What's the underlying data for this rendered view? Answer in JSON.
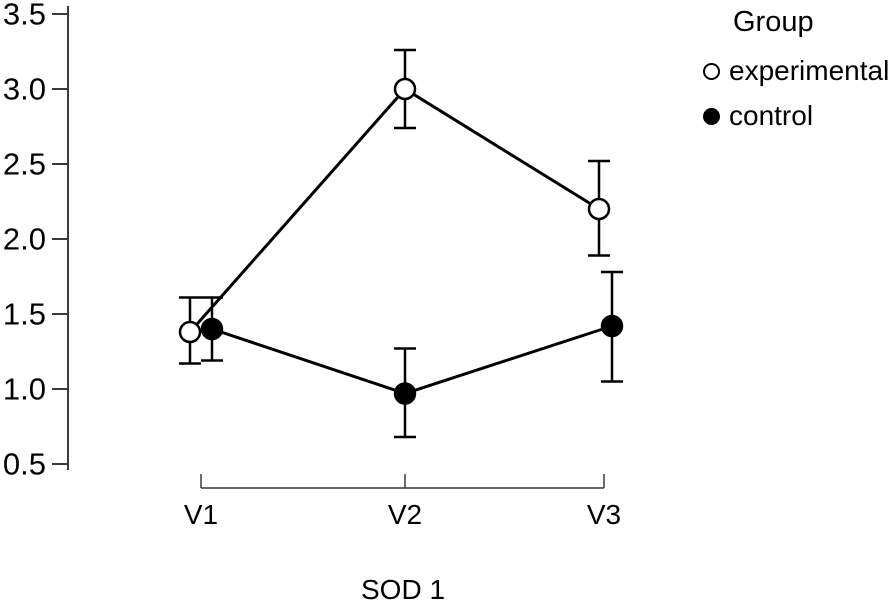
{
  "chart_data": {
    "type": "line",
    "title": "",
    "xlabel": "SOD 1",
    "ylabel": "",
    "categories": [
      "V1",
      "V2",
      "V3"
    ],
    "y_ticks": [
      0.5,
      1.0,
      1.5,
      2.0,
      2.5,
      3.0,
      3.5
    ],
    "ylim": [
      0.5,
      3.5
    ],
    "grid": false,
    "legend": {
      "title": "Group",
      "position": "top-right"
    },
    "series": [
      {
        "name": "experimental",
        "marker": "open-circle",
        "color": "#000000",
        "values": [
          1.38,
          3.0,
          2.2
        ],
        "error_low": [
          1.17,
          2.74,
          1.89
        ],
        "error_high": [
          1.61,
          3.26,
          2.52
        ]
      },
      {
        "name": "control",
        "marker": "filled-circle",
        "color": "#000000",
        "values": [
          1.4,
          0.97,
          1.42
        ],
        "error_low": [
          1.19,
          0.68,
          1.05
        ],
        "error_high": [
          1.61,
          1.27,
          1.78
        ]
      }
    ]
  }
}
